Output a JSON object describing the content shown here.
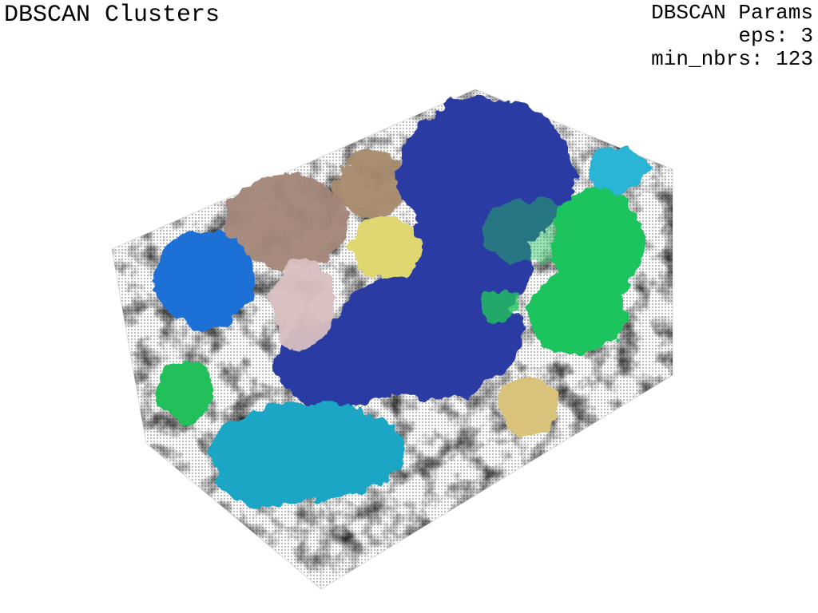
{
  "viewer": {
    "title": "DBSCAN Clusters",
    "params": {
      "heading": "DBSCAN Params",
      "eps_label": "eps: 3",
      "min_nbrs_label": "min_nbrs: 123"
    }
  },
  "clusters": [
    {
      "name": "noise-points",
      "color": "#9a9a9a"
    },
    {
      "name": "cluster-navy-large",
      "color": "#2b3aa3"
    },
    {
      "name": "cluster-blue-left",
      "color": "#1f6fd6"
    },
    {
      "name": "cluster-cyan-bottom",
      "color": "#1aa6c6"
    },
    {
      "name": "cluster-cyan-top-right",
      "color": "#2ab4d6"
    },
    {
      "name": "cluster-green-right",
      "color": "#1fc45d"
    },
    {
      "name": "cluster-green-left",
      "color": "#22c05a"
    },
    {
      "name": "cluster-brown-rose",
      "color": "#a48578"
    },
    {
      "name": "cluster-tan-brown",
      "color": "#a88a6e"
    },
    {
      "name": "cluster-yellow",
      "color": "#e0d770"
    },
    {
      "name": "cluster-khaki",
      "color": "#d9c27a"
    },
    {
      "name": "cluster-pale-pink",
      "color": "#d9c0c0"
    }
  ]
}
